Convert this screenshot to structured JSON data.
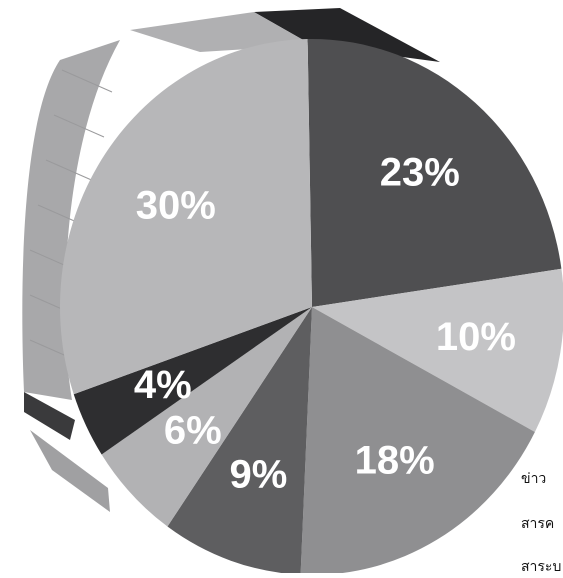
{
  "chart_data": {
    "type": "pie",
    "title": "",
    "categories": [
      "",
      "",
      "",
      "",
      "",
      "",
      "",
      ""
    ],
    "values": [
      23,
      10,
      18,
      9,
      6,
      4,
      30,
      0
    ],
    "labels": [
      "23%",
      "10%",
      "18%",
      "9%",
      "6%",
      "4%",
      "30%",
      ""
    ],
    "colors": [
      "#4f4f51",
      "#c4c4c6",
      "#8f8f91",
      "#5e5e60",
      "#b2b2b4",
      "#2e2e30",
      "#b7b7b9",
      "#1f1f21"
    ],
    "legend": "right",
    "legend_entries": [
      "ข่าว",
      "สารค",
      "สาระบ"
    ]
  }
}
